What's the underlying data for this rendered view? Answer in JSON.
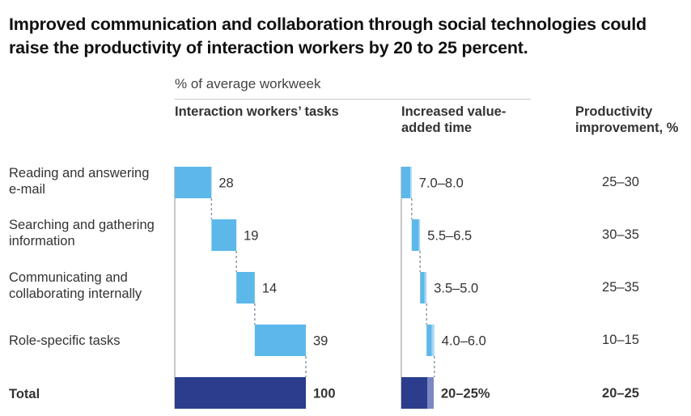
{
  "title": "Improved communication and collaboration through social technologies could raise the productivity of interaction workers by 20 to 25 percent.",
  "subhead": "% of average workweek",
  "columns": {
    "tasks": "Interaction workers’ tasks",
    "value_added": "Increased value-added time",
    "productivity": "Productivity improvement, %"
  },
  "colors": {
    "light_bar": "#5db8ea",
    "light_bar_range": "#a9d8f3",
    "total_bar": "#2b3d8c",
    "total_bar_range": "#7a87c2",
    "axis": "#b5b5b5",
    "connector": "#8a9aa8"
  },
  "chart_data": {
    "type": "bar",
    "title": "Improved communication and collaboration through social technologies could raise the productivity of interaction workers by 20 to 25 percent.",
    "subtitle": "% of average workweek",
    "categories": [
      "Reading and answering e-mail",
      "Searching and gathering information",
      "Communicating and collaborating internally",
      "Role-specific tasks",
      "Total"
    ],
    "series": [
      {
        "name": "Interaction workers’ tasks",
        "style": "waterfall",
        "values": [
          28,
          19,
          14,
          39,
          100
        ],
        "labels": [
          "28",
          "19",
          "14",
          "39",
          "100"
        ]
      },
      {
        "name": "Increased value-added time",
        "style": "waterfall-range",
        "min": [
          7.0,
          5.5,
          3.5,
          4.0,
          20
        ],
        "max": [
          8.0,
          6.5,
          5.0,
          6.0,
          25
        ],
        "labels": [
          "7.0–8.0",
          "5.5–6.5",
          "3.5–5.0",
          "4.0–6.0",
          "20–25%"
        ]
      },
      {
        "name": "Productivity improvement, %",
        "style": "text",
        "labels": [
          "25–30",
          "30–35",
          "25–35",
          "10–15",
          "20–25"
        ]
      }
    ],
    "xlim": [
      0,
      100
    ]
  }
}
